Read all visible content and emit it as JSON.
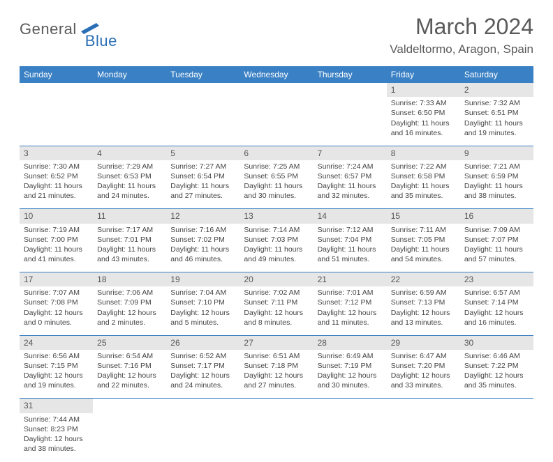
{
  "logo": {
    "general": "General",
    "blue": "Blue"
  },
  "title": "March 2024",
  "location": "Valdeltormo, Aragon, Spain",
  "colors": {
    "header_bg": "#3a80c4",
    "header_text": "#ffffff",
    "daynum_bg": "#e6e6e6",
    "cell_border": "#3a80c4",
    "text": "#444444",
    "logo_blue": "#2a6fb5",
    "logo_gray": "#5a5a5a"
  },
  "weekdays": [
    "Sunday",
    "Monday",
    "Tuesday",
    "Wednesday",
    "Thursday",
    "Friday",
    "Saturday"
  ],
  "weeks": [
    [
      null,
      null,
      null,
      null,
      null,
      {
        "d": "1",
        "sr": "7:33 AM",
        "ss": "6:50 PM",
        "dl": "11 hours and 16 minutes."
      },
      {
        "d": "2",
        "sr": "7:32 AM",
        "ss": "6:51 PM",
        "dl": "11 hours and 19 minutes."
      }
    ],
    [
      {
        "d": "3",
        "sr": "7:30 AM",
        "ss": "6:52 PM",
        "dl": "11 hours and 21 minutes."
      },
      {
        "d": "4",
        "sr": "7:29 AM",
        "ss": "6:53 PM",
        "dl": "11 hours and 24 minutes."
      },
      {
        "d": "5",
        "sr": "7:27 AM",
        "ss": "6:54 PM",
        "dl": "11 hours and 27 minutes."
      },
      {
        "d": "6",
        "sr": "7:25 AM",
        "ss": "6:55 PM",
        "dl": "11 hours and 30 minutes."
      },
      {
        "d": "7",
        "sr": "7:24 AM",
        "ss": "6:57 PM",
        "dl": "11 hours and 32 minutes."
      },
      {
        "d": "8",
        "sr": "7:22 AM",
        "ss": "6:58 PM",
        "dl": "11 hours and 35 minutes."
      },
      {
        "d": "9",
        "sr": "7:21 AM",
        "ss": "6:59 PM",
        "dl": "11 hours and 38 minutes."
      }
    ],
    [
      {
        "d": "10",
        "sr": "7:19 AM",
        "ss": "7:00 PM",
        "dl": "11 hours and 41 minutes."
      },
      {
        "d": "11",
        "sr": "7:17 AM",
        "ss": "7:01 PM",
        "dl": "11 hours and 43 minutes."
      },
      {
        "d": "12",
        "sr": "7:16 AM",
        "ss": "7:02 PM",
        "dl": "11 hours and 46 minutes."
      },
      {
        "d": "13",
        "sr": "7:14 AM",
        "ss": "7:03 PM",
        "dl": "11 hours and 49 minutes."
      },
      {
        "d": "14",
        "sr": "7:12 AM",
        "ss": "7:04 PM",
        "dl": "11 hours and 51 minutes."
      },
      {
        "d": "15",
        "sr": "7:11 AM",
        "ss": "7:05 PM",
        "dl": "11 hours and 54 minutes."
      },
      {
        "d": "16",
        "sr": "7:09 AM",
        "ss": "7:07 PM",
        "dl": "11 hours and 57 minutes."
      }
    ],
    [
      {
        "d": "17",
        "sr": "7:07 AM",
        "ss": "7:08 PM",
        "dl": "12 hours and 0 minutes."
      },
      {
        "d": "18",
        "sr": "7:06 AM",
        "ss": "7:09 PM",
        "dl": "12 hours and 2 minutes."
      },
      {
        "d": "19",
        "sr": "7:04 AM",
        "ss": "7:10 PM",
        "dl": "12 hours and 5 minutes."
      },
      {
        "d": "20",
        "sr": "7:02 AM",
        "ss": "7:11 PM",
        "dl": "12 hours and 8 minutes."
      },
      {
        "d": "21",
        "sr": "7:01 AM",
        "ss": "7:12 PM",
        "dl": "12 hours and 11 minutes."
      },
      {
        "d": "22",
        "sr": "6:59 AM",
        "ss": "7:13 PM",
        "dl": "12 hours and 13 minutes."
      },
      {
        "d": "23",
        "sr": "6:57 AM",
        "ss": "7:14 PM",
        "dl": "12 hours and 16 minutes."
      }
    ],
    [
      {
        "d": "24",
        "sr": "6:56 AM",
        "ss": "7:15 PM",
        "dl": "12 hours and 19 minutes."
      },
      {
        "d": "25",
        "sr": "6:54 AM",
        "ss": "7:16 PM",
        "dl": "12 hours and 22 minutes."
      },
      {
        "d": "26",
        "sr": "6:52 AM",
        "ss": "7:17 PM",
        "dl": "12 hours and 24 minutes."
      },
      {
        "d": "27",
        "sr": "6:51 AM",
        "ss": "7:18 PM",
        "dl": "12 hours and 27 minutes."
      },
      {
        "d": "28",
        "sr": "6:49 AM",
        "ss": "7:19 PM",
        "dl": "12 hours and 30 minutes."
      },
      {
        "d": "29",
        "sr": "6:47 AM",
        "ss": "7:20 PM",
        "dl": "12 hours and 33 minutes."
      },
      {
        "d": "30",
        "sr": "6:46 AM",
        "ss": "7:22 PM",
        "dl": "12 hours and 35 minutes."
      }
    ],
    [
      {
        "d": "31",
        "sr": "7:44 AM",
        "ss": "8:23 PM",
        "dl": "12 hours and 38 minutes."
      },
      null,
      null,
      null,
      null,
      null,
      null
    ]
  ],
  "labels": {
    "sunrise": "Sunrise:",
    "sunset": "Sunset:",
    "daylight": "Daylight:"
  }
}
